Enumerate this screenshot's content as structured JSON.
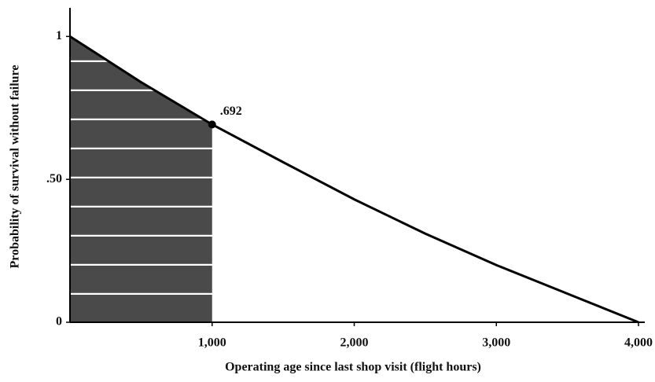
{
  "chart_data": {
    "type": "line",
    "xlabel": "Operating age since last shop visit (flight hours)",
    "ylabel": "Probability of survival without failure",
    "x": [
      0,
      500,
      1000,
      1500,
      2000,
      2500,
      3000,
      3500,
      4000
    ],
    "series": [
      {
        "color": "#000000",
        "values": [
          1,
          0.84,
          0.692,
          0.56,
          0.43,
          0.31,
          0.2,
          0.1,
          0
        ]
      }
    ],
    "xlim": [
      0,
      4000
    ],
    "xticks": [
      {
        "value": 1000,
        "label": "1,000"
      },
      {
        "value": 2000,
        "label": "2,000"
      },
      {
        "value": 3000,
        "label": "3,000"
      },
      {
        "value": 4000,
        "label": "4,000"
      }
    ],
    "ylim": [
      0,
      1.1
    ],
    "yticks": [
      0,
      {
        "value": 0.5,
        "label": ".50"
      },
      1
    ],
    "annotations": [
      {
        "x": 1000,
        "y": 0.692,
        "text": ".692"
      }
    ],
    "shade_color": "#4a4a4a"
  }
}
